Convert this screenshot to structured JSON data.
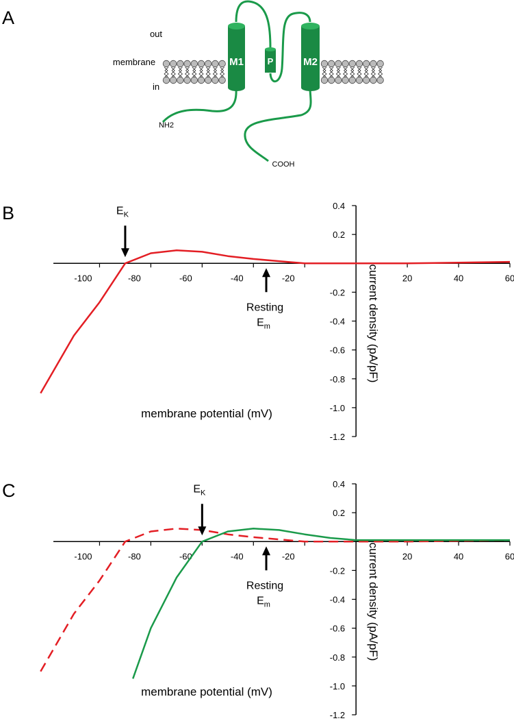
{
  "panel_labels": [
    "A",
    "B",
    "C"
  ],
  "diagram": {
    "out": "out",
    "membrane": "membrane",
    "in": "in",
    "nh2": "NH2",
    "cooh": "COOH",
    "segments": [
      "M1",
      "P",
      "M2"
    ]
  },
  "chart_data": [
    {
      "type": "line",
      "xlabel": "membrane potential (mV)",
      "ylabel": "current density (pA/pF)",
      "xlim": [
        -118,
        60
      ],
      "ylim": [
        -1.2,
        0.4
      ],
      "xticks": [
        -100,
        -80,
        -60,
        -40,
        -20,
        20,
        40,
        60
      ],
      "yticks": [
        0.4,
        0.2,
        -0.2,
        -0.4,
        -0.6,
        -0.8,
        {
          "value": -1,
          "label": "-1.0"
        },
        -1.2
      ],
      "series": [
        {
          "color": "#e31e24",
          "dashed": false,
          "x": [
            -123,
            -110,
            -100,
            -90,
            -80,
            -70,
            -60,
            -50,
            -40,
            -30,
            -20,
            0,
            20,
            40,
            60
          ],
          "values": [
            -0.9,
            -0.5,
            -0.27,
            0,
            0.07,
            0.09,
            0.08,
            0.05,
            0.03,
            0.015,
            0,
            0,
            0,
            0.005,
            0.01
          ]
        }
      ],
      "annotations": [
        {
          "text": "E",
          "sub": "K",
          "x": -90
        },
        {
          "text": "Resting",
          "text2": "E",
          "sub": "m",
          "x": -35
        }
      ]
    },
    {
      "type": "line",
      "xlabel": "membrane potential (mV)",
      "ylabel": "current density (pA/pF)",
      "xlim": [
        -118,
        60
      ],
      "ylim": [
        -1.2,
        0.4
      ],
      "xticks": [
        -100,
        -80,
        -60,
        -40,
        -20,
        20,
        40,
        60
      ],
      "yticks": [
        0.4,
        0.2,
        -0.2,
        -0.4,
        -0.6,
        -0.8,
        {
          "value": -1,
          "label": "-1.0"
        },
        -1.2
      ],
      "series": [
        {
          "color": "#e31e24",
          "dashed": true,
          "x": [
            -123,
            -110,
            -100,
            -90,
            -80,
            -70,
            -60,
            -50,
            -40,
            -30,
            -20,
            0,
            20,
            40,
            60
          ],
          "values": [
            -0.9,
            -0.5,
            -0.27,
            0,
            0.07,
            0.09,
            0.08,
            0.05,
            0.03,
            0.015,
            0,
            0,
            0,
            0.005,
            0.01
          ]
        },
        {
          "color": "#1a9a4a",
          "dashed": false,
          "x": [
            -87,
            -80,
            -70,
            -60,
            -50,
            -40,
            -30,
            -20,
            -10,
            0,
            20,
            60
          ],
          "values": [
            -0.95,
            -0.6,
            -0.25,
            0,
            0.07,
            0.09,
            0.08,
            0.05,
            0.025,
            0.01,
            0.01,
            0.01
          ]
        }
      ],
      "annotations": [
        {
          "text": "E",
          "sub": "K",
          "x": -60
        },
        {
          "text": "Resting",
          "text2": "E",
          "sub": "m",
          "x": -35
        }
      ]
    }
  ]
}
